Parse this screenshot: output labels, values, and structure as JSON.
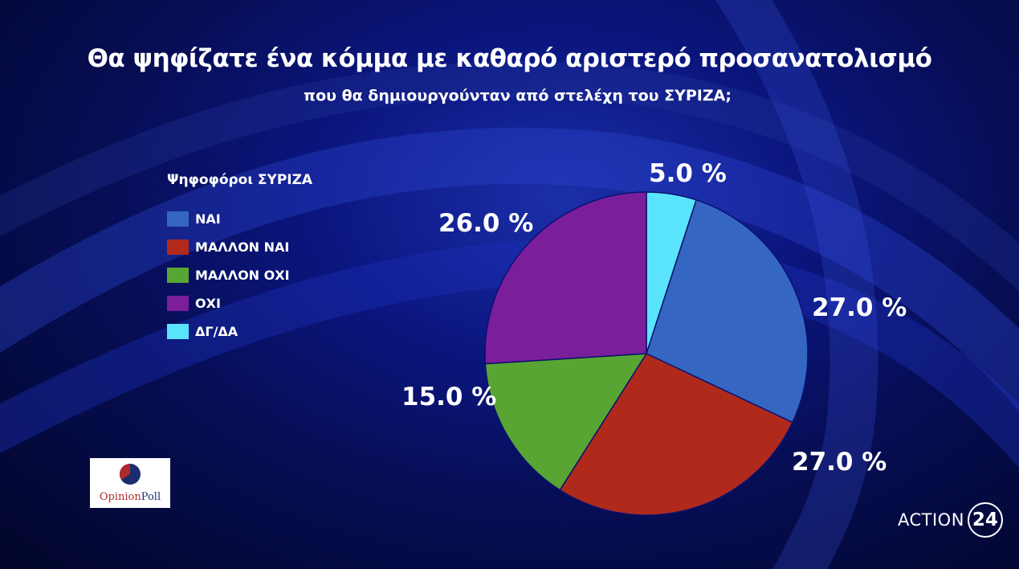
{
  "title": "Θα ψηφίζατε ένα κόμμα με καθαρό αριστερό προσανατολισμό",
  "subtitle": "που θα δημιουργούνταν από στελέχη του ΣΥΡΙΖΑ;",
  "chart_data": {
    "type": "pie",
    "legend_title": "Ψηφοφόροι ΣΥΡΙΖΑ",
    "legend_position": "left",
    "slices": [
      {
        "label": "ΝΑΙ",
        "value": 27.0,
        "display": "27.0 %",
        "color": "#3567c2"
      },
      {
        "label": "ΜΑΛΛΟΝ ΝΑΙ",
        "value": 27.0,
        "display": "27.0 %",
        "color": "#b02a1c"
      },
      {
        "label": "ΜΑΛΛΟΝ ΟΧΙ",
        "value": 15.0,
        "display": "15.0 %",
        "color": "#58a533"
      },
      {
        "label": "ΟΧΙ",
        "value": 26.0,
        "display": "26.0 %",
        "color": "#7a1e9c"
      },
      {
        "label": "ΔΓ/ΔΑ",
        "value": 5.0,
        "display": "5.0 %",
        "color": "#5ae4fb"
      }
    ]
  },
  "logos": {
    "opinion_poll": {
      "part1": "Opinion",
      "part2": "Poll"
    },
    "action24": {
      "word": "ACTION",
      "number": "24"
    }
  }
}
